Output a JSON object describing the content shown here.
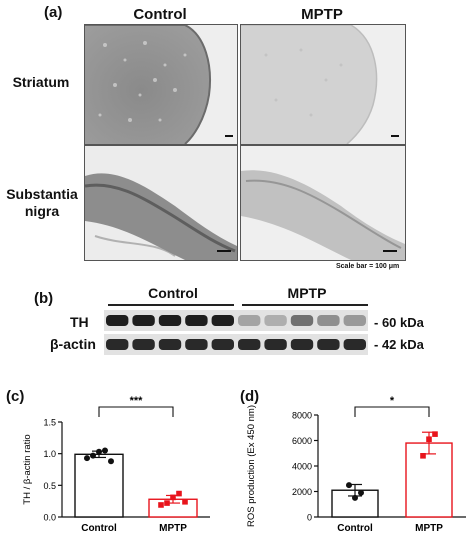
{
  "panel_a": {
    "label": "(a)",
    "columns": [
      "Control",
      "MPTP"
    ],
    "rows": [
      "Striatum",
      "Substantia\nnigra"
    ],
    "scale_note": "Scale bar = 100 μm"
  },
  "panel_b": {
    "label": "(b)",
    "groups": [
      "Control",
      "MPTP"
    ],
    "proteins": [
      {
        "name": "TH",
        "size": "- 60 kDa",
        "band_intensity": [
          0.95,
          0.95,
          0.95,
          0.95,
          0.95,
          0.3,
          0.25,
          0.55,
          0.4,
          0.35
        ]
      },
      {
        "name": "β-actin",
        "size": "- 42 kDa",
        "band_intensity": [
          0.9,
          0.9,
          0.9,
          0.9,
          0.9,
          0.9,
          0.9,
          0.9,
          0.9,
          0.9
        ]
      }
    ]
  },
  "panel_c": {
    "label": "(c)",
    "chart_data": {
      "type": "bar",
      "categories": [
        "Control",
        "MPTP"
      ],
      "values": [
        0.99,
        0.28
      ],
      "errors": [
        0.05,
        0.06
      ],
      "points": [
        [
          0.93,
          0.97,
          1.03,
          1.05,
          0.88
        ],
        [
          0.19,
          0.22,
          0.31,
          0.37,
          0.24
        ]
      ],
      "ylabel": "TH / β-actin ratio",
      "ylim": [
        0,
        1.5
      ],
      "yticks": [
        "0.0",
        "0.5",
        "1.0",
        "1.5"
      ],
      "significance": "***",
      "colors": [
        "#111111",
        "#e8141c"
      ]
    }
  },
  "panel_d": {
    "label": "(d)",
    "chart_data": {
      "type": "bar",
      "categories": [
        "Control",
        "MPTP"
      ],
      "values": [
        2100,
        5800
      ],
      "errors": [
        450,
        850
      ],
      "points": [
        [
          2500,
          1500,
          1900
        ],
        [
          4800,
          6100,
          6500
        ]
      ],
      "ylabel": "ROS production (Ex 450 nm)",
      "ylim": [
        0,
        8000
      ],
      "yticks": [
        "0",
        "2000",
        "4000",
        "6000",
        "8000"
      ],
      "significance": "*",
      "colors": [
        "#111111",
        "#e8141c"
      ]
    }
  }
}
